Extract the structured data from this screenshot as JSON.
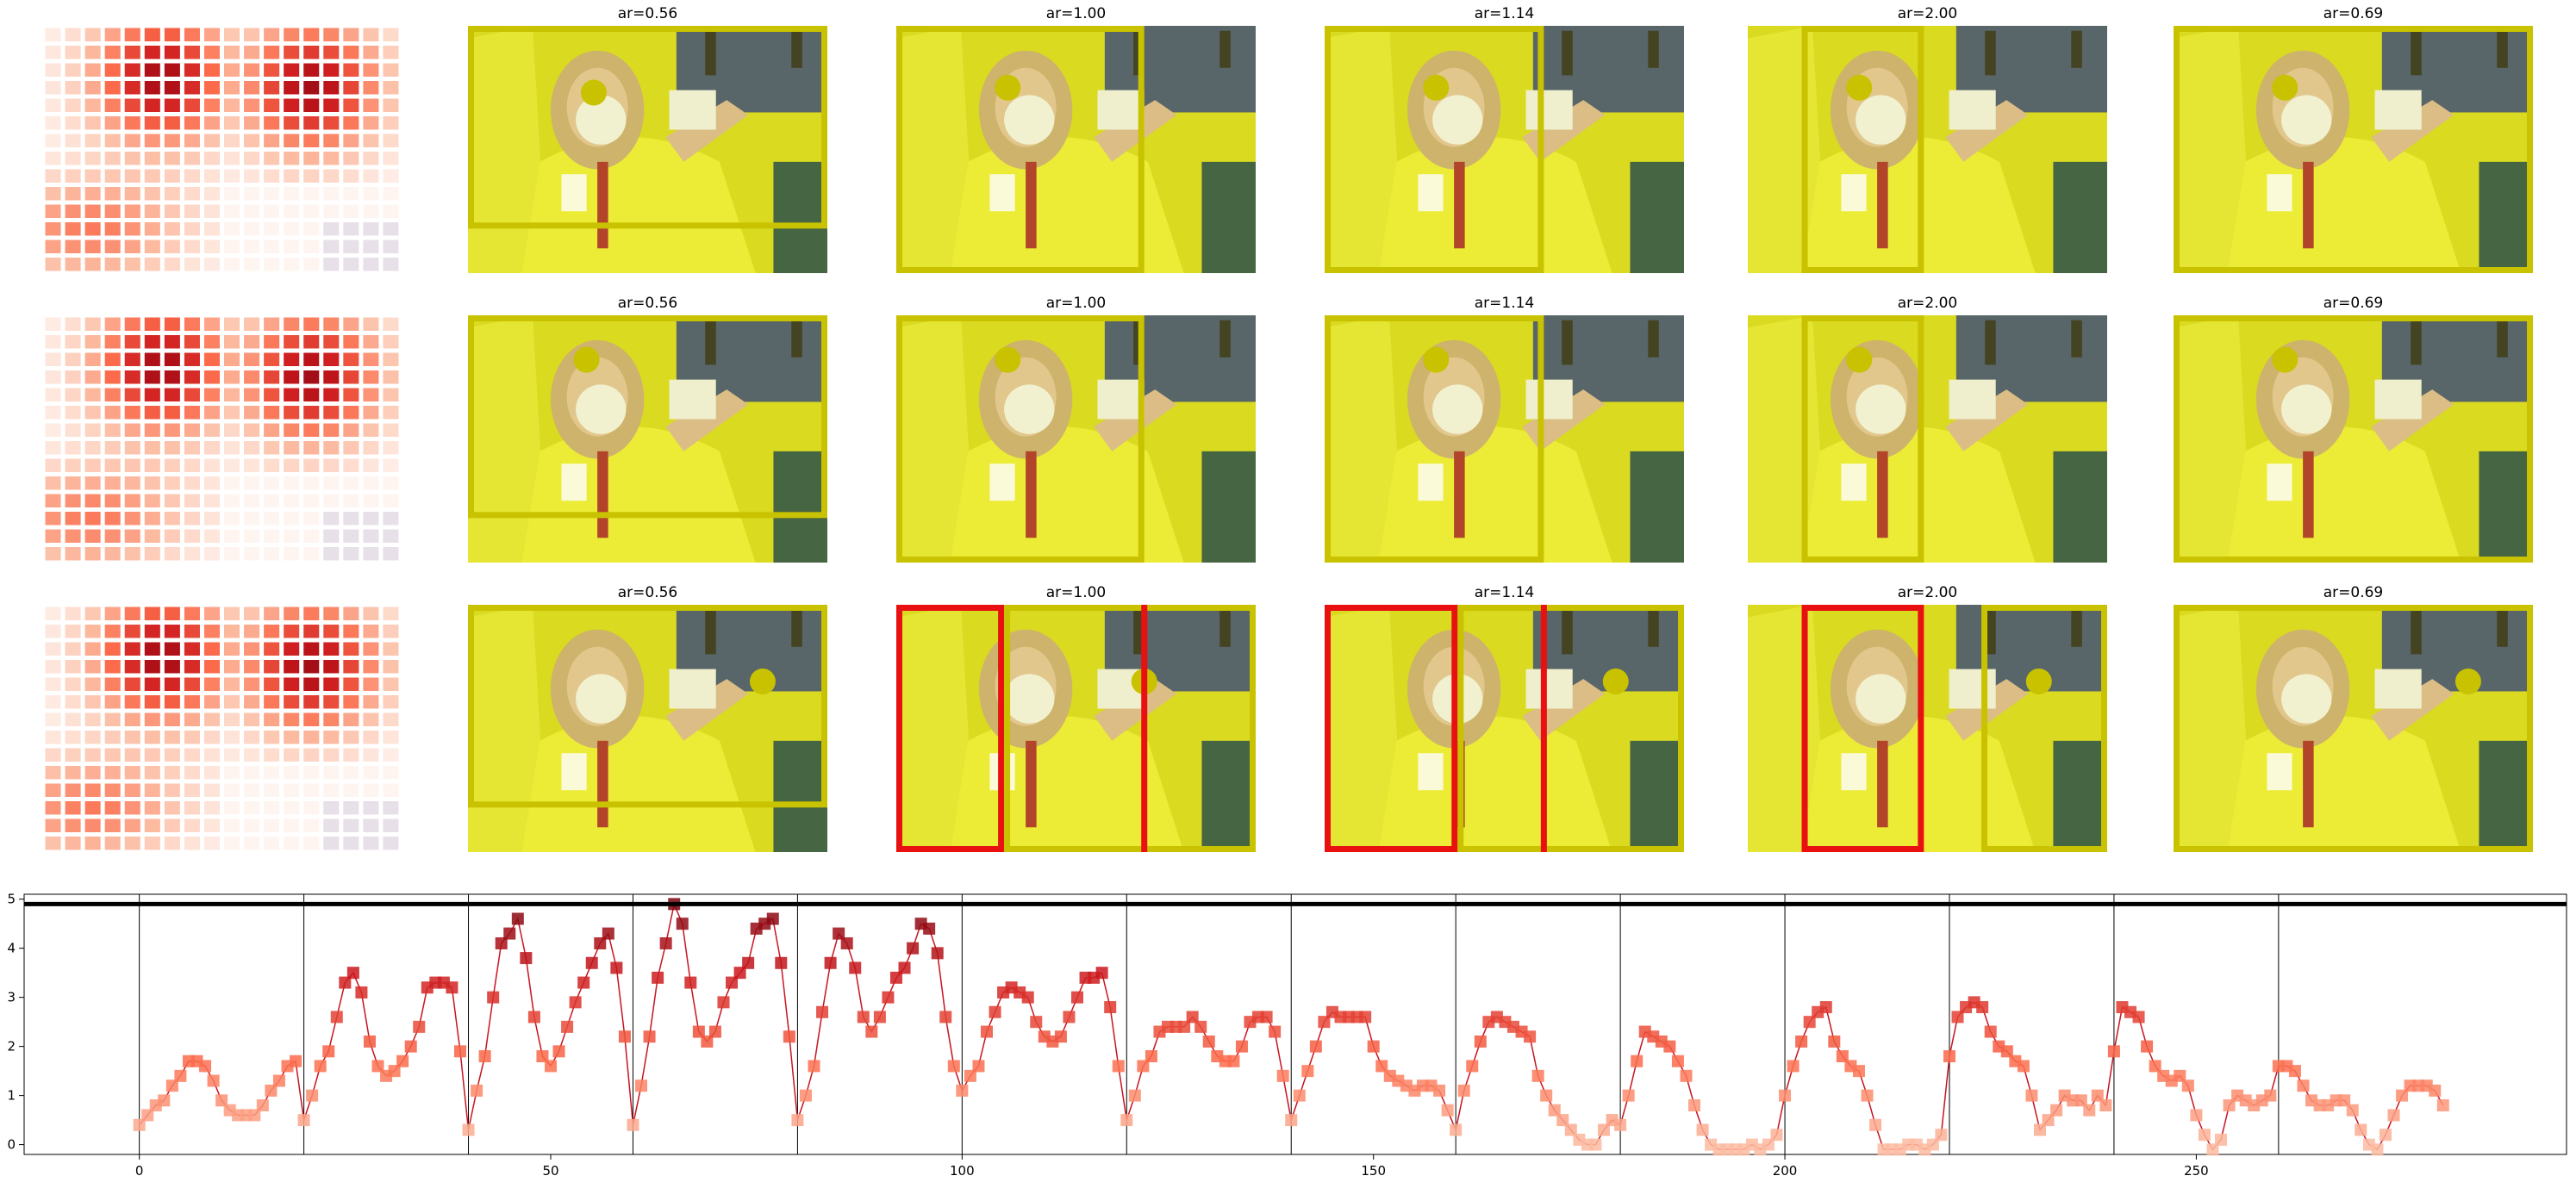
{
  "panel_rows": [
    {
      "panels": [
        {
          "title": "ar=0.56",
          "box_color": "#c8c200",
          "dot": [
            0.35,
            0.27
          ],
          "boxes": [
            {
              "x0": 0.0,
              "y0": 0.0,
              "x1": 1.0,
              "y1": 0.82,
              "color": "#c8c200"
            }
          ]
        },
        {
          "title": "ar=1.00",
          "box_color": "#c8c200",
          "dot": [
            0.31,
            0.25
          ],
          "boxes": [
            {
              "x0": 0.0,
              "y0": 0.0,
              "x1": 0.69,
              "y1": 1.0,
              "color": "#c8c200"
            }
          ]
        },
        {
          "title": "ar=1.14",
          "box_color": "#c8c200",
          "dot": [
            0.31,
            0.25
          ],
          "boxes": [
            {
              "x0": 0.0,
              "y0": 0.0,
              "x1": 0.61,
              "y1": 1.0,
              "color": "#c8c200"
            }
          ]
        },
        {
          "title": "ar=2.00",
          "box_color": "#c8c200",
          "dot": [
            0.31,
            0.25
          ],
          "boxes": [
            {
              "x0": 0.15,
              "y0": 0.0,
              "x1": 0.49,
              "y1": 1.0,
              "color": "#c8c200"
            }
          ]
        },
        {
          "title": "ar=0.69",
          "box_color": "#c8c200",
          "dot": [
            0.31,
            0.25
          ],
          "boxes": [
            {
              "x0": 0.0,
              "y0": 0.0,
              "x1": 1.0,
              "y1": 1.0,
              "color": "#c8c200"
            }
          ]
        }
      ]
    },
    {
      "panels": [
        {
          "title": "ar=0.56",
          "box_color": "#c8c200",
          "dot": [
            0.33,
            0.18
          ],
          "boxes": [
            {
              "x0": 0.0,
              "y0": 0.0,
              "x1": 1.0,
              "y1": 0.82,
              "color": "#c8c200"
            }
          ]
        },
        {
          "title": "ar=1.00",
          "box_color": "#c8c200",
          "dot": [
            0.31,
            0.18
          ],
          "boxes": [
            {
              "x0": 0.0,
              "y0": 0.0,
              "x1": 0.69,
              "y1": 1.0,
              "color": "#c8c200"
            }
          ]
        },
        {
          "title": "ar=1.14",
          "box_color": "#c8c200",
          "dot": [
            0.31,
            0.18
          ],
          "boxes": [
            {
              "x0": 0.0,
              "y0": 0.0,
              "x1": 0.61,
              "y1": 1.0,
              "color": "#c8c200"
            }
          ]
        },
        {
          "title": "ar=2.00",
          "box_color": "#c8c200",
          "dot": [
            0.31,
            0.18
          ],
          "boxes": [
            {
              "x0": 0.15,
              "y0": 0.0,
              "x1": 0.49,
              "y1": 1.0,
              "color": "#c8c200"
            }
          ]
        },
        {
          "title": "ar=0.69",
          "box_color": "#c8c200",
          "dot": [
            0.31,
            0.18
          ],
          "boxes": [
            {
              "x0": 0.0,
              "y0": 0.0,
              "x1": 1.0,
              "y1": 1.0,
              "color": "#c8c200"
            }
          ]
        }
      ]
    },
    {
      "panels": [
        {
          "title": "ar=0.56",
          "box_color": "#c8c200",
          "dot": [
            0.82,
            0.31
          ],
          "boxes": [
            {
              "x0": 0.0,
              "y0": 0.0,
              "x1": 1.0,
              "y1": 0.82,
              "color": "#c8c200"
            }
          ]
        },
        {
          "title": "ar=1.00",
          "box_color": "#c8c200",
          "dot": [
            0.69,
            0.31
          ],
          "boxes": [
            {
              "x0": 0.0,
              "y0": 0.0,
              "x1": 0.3,
              "y1": 1.0,
              "color": "#e81010"
            },
            {
              "x0": 0.3,
              "y0": 0.0,
              "x1": 1.0,
              "y1": 1.0,
              "color": "#c8c200"
            },
            {
              "x0": 0.69,
              "y0": 0.0,
              "x1": 0.69,
              "y1": 1.0,
              "color": "#e81010"
            }
          ]
        },
        {
          "title": "ar=1.14",
          "box_color": "#c8c200",
          "dot": [
            0.81,
            0.31
          ],
          "boxes": [
            {
              "x0": 0.0,
              "y0": 0.0,
              "x1": 0.37,
              "y1": 1.0,
              "color": "#e81010"
            },
            {
              "x0": 0.37,
              "y0": 0.0,
              "x1": 1.0,
              "y1": 1.0,
              "color": "#c8c200"
            },
            {
              "x0": 0.61,
              "y0": 0.0,
              "x1": 0.61,
              "y1": 1.0,
              "color": "#e81010"
            }
          ]
        },
        {
          "title": "ar=2.00",
          "box_color": "#c8c200",
          "dot": [
            0.81,
            0.31
          ],
          "boxes": [
            {
              "x0": 0.15,
              "y0": 0.0,
              "x1": 0.49,
              "y1": 1.0,
              "color": "#e81010"
            },
            {
              "x0": 0.65,
              "y0": 0.0,
              "x1": 1.0,
              "y1": 1.0,
              "color": "#c8c200"
            }
          ]
        },
        {
          "title": "ar=0.69",
          "box_color": "#c8c200",
          "dot": [
            0.82,
            0.31
          ],
          "boxes": [
            {
              "x0": 0.0,
              "y0": 0.0,
              "x1": 1.0,
              "y1": 1.0,
              "color": "#c8c200"
            }
          ]
        }
      ]
    }
  ],
  "chart_data": {
    "type": "scatter",
    "x_ticks": [
      "0",
      "50",
      "100",
      "150",
      "200",
      "250"
    ],
    "y_ticks": [
      "0",
      "1",
      "2",
      "3",
      "4",
      "5"
    ],
    "xlim": [
      -14,
      295
    ],
    "ylim": [
      -0.2,
      5.1
    ],
    "threshold": 4.9,
    "segment_boundaries": [
      0,
      20,
      40,
      60,
      80,
      100,
      120,
      140,
      160,
      180,
      200,
      220,
      240,
      260
    ],
    "y": [
      0.4,
      0.6,
      0.8,
      0.9,
      1.2,
      1.4,
      1.7,
      1.7,
      1.6,
      1.3,
      0.9,
      0.7,
      0.6,
      0.6,
      0.6,
      0.8,
      1.1,
      1.3,
      1.6,
      1.7,
      0.5,
      1.0,
      1.6,
      1.9,
      2.6,
      3.3,
      3.5,
      3.1,
      2.1,
      1.6,
      1.4,
      1.5,
      1.7,
      2.0,
      2.4,
      3.2,
      3.3,
      3.3,
      3.2,
      1.9,
      0.3,
      1.1,
      1.8,
      3.0,
      4.1,
      4.3,
      4.6,
      3.8,
      2.6,
      1.8,
      1.6,
      1.9,
      2.4,
      2.9,
      3.3,
      3.7,
      4.1,
      4.3,
      3.6,
      2.2,
      0.4,
      1.2,
      2.2,
      3.4,
      4.1,
      4.9,
      4.5,
      3.3,
      2.3,
      2.1,
      2.3,
      2.9,
      3.3,
      3.5,
      3.7,
      4.4,
      4.5,
      4.6,
      3.7,
      2.2,
      0.5,
      1.0,
      1.6,
      2.7,
      3.7,
      4.3,
      4.1,
      3.6,
      2.6,
      2.3,
      2.6,
      3.0,
      3.4,
      3.6,
      4.0,
      4.5,
      4.4,
      3.9,
      2.6,
      1.6,
      1.1,
      1.4,
      1.6,
      2.3,
      2.7,
      3.1,
      3.2,
      3.1,
      3.0,
      2.5,
      2.2,
      2.1,
      2.2,
      2.6,
      3.0,
      3.4,
      3.4,
      3.5,
      2.8,
      1.6,
      0.5,
      1.0,
      1.6,
      1.8,
      2.3,
      2.4,
      2.4,
      2.4,
      2.6,
      2.4,
      2.1,
      1.8,
      1.7,
      1.7,
      2.0,
      2.5,
      2.6,
      2.6,
      2.3,
      1.4,
      0.5,
      1.0,
      1.5,
      2.0,
      2.5,
      2.7,
      2.6,
      2.6,
      2.6,
      2.6,
      2.0,
      1.6,
      1.4,
      1.3,
      1.2,
      1.1,
      1.2,
      1.2,
      1.1,
      0.7,
      0.3,
      1.1,
      1.6,
      2.1,
      2.5,
      2.6,
      2.5,
      2.4,
      2.3,
      2.2,
      1.4,
      1.0,
      0.7,
      0.5,
      0.3,
      0.1,
      0.0,
      0.0,
      0.3,
      0.5,
      0.4,
      1.0,
      1.7,
      2.3,
      2.2,
      2.1,
      2.0,
      1.7,
      1.4,
      0.8,
      0.3,
      0.0,
      -0.1,
      -0.1,
      -0.1,
      -0.1,
      0.0,
      -0.1,
      0.0,
      0.2,
      1.0,
      1.6,
      2.1,
      2.5,
      2.7,
      2.8,
      2.1,
      1.8,
      1.6,
      1.5,
      1.0,
      0.4,
      -0.1,
      -0.1,
      -0.1,
      0.0,
      0.0,
      -0.1,
      0.0,
      0.2,
      1.8,
      2.6,
      2.8,
      2.9,
      2.8,
      2.3,
      2.0,
      1.9,
      1.7,
      1.6,
      1.0,
      0.3,
      0.5,
      0.7,
      1.0,
      0.9,
      0.9,
      0.7,
      1.0,
      0.8,
      1.9,
      2.8,
      2.7,
      2.6,
      2.0,
      1.6,
      1.4,
      1.3,
      1.4,
      1.2,
      0.6,
      0.2,
      -0.1,
      0.1,
      0.8,
      1.0,
      0.9,
      0.8,
      0.9,
      1.0,
      1.6,
      1.6,
      1.5,
      1.2,
      0.9,
      0.8,
      0.8,
      0.9,
      0.9,
      0.7,
      0.3,
      0.0,
      -0.1,
      0.2,
      0.6,
      1.0,
      1.2,
      1.2,
      1.2,
      1.1,
      0.8
    ]
  }
}
